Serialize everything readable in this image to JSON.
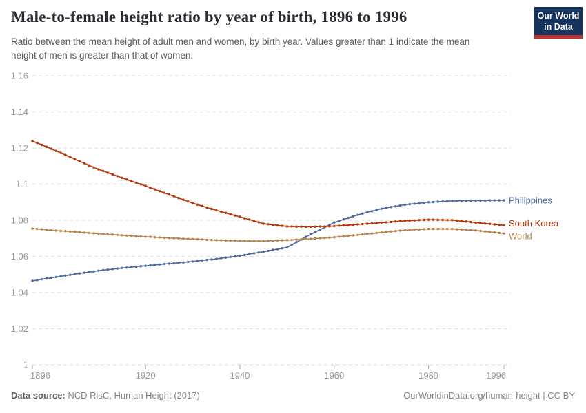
{
  "header": {
    "title": "Male-to-female height ratio by year of birth, 1896 to 1996",
    "subtitle": "Ratio between the mean height of adult men and women, by birth year. Values greater than 1 indicate the mean height of men is greater than that of women.",
    "logo": {
      "line1": "Our World",
      "line2": "in Data",
      "bg_color": "#16335B",
      "stripe_color": "#BE3538"
    }
  },
  "chart_data": {
    "type": "line",
    "title": "Male-to-female height ratio by year of birth, 1896 to 1996",
    "xlabel": "",
    "ylabel": "",
    "ylim": [
      1,
      1.16
    ],
    "yticks": [
      1,
      1.02,
      1.04,
      1.06,
      1.08,
      1.1,
      1.12,
      1.14,
      1.16
    ],
    "ytick_labels": [
      "1",
      "1.02",
      "1.04",
      "1.06",
      "1.08",
      "1.1",
      "1.12",
      "1.14",
      "1.16"
    ],
    "xticks": [
      1896,
      1920,
      1940,
      1960,
      1980,
      1996
    ],
    "grid": "horizontal-dashed",
    "legend": "end-of-line-labels",
    "marker": "yearly-dots",
    "x": [
      1896,
      1897,
      1898,
      1899,
      1900,
      1901,
      1902,
      1903,
      1904,
      1905,
      1906,
      1907,
      1908,
      1909,
      1910,
      1911,
      1912,
      1913,
      1914,
      1915,
      1916,
      1917,
      1918,
      1919,
      1920,
      1921,
      1922,
      1923,
      1924,
      1925,
      1926,
      1927,
      1928,
      1929,
      1930,
      1931,
      1932,
      1933,
      1934,
      1935,
      1936,
      1937,
      1938,
      1939,
      1940,
      1941,
      1942,
      1943,
      1944,
      1945,
      1946,
      1947,
      1948,
      1949,
      1950,
      1951,
      1952,
      1953,
      1954,
      1955,
      1956,
      1957,
      1958,
      1959,
      1960,
      1961,
      1962,
      1963,
      1964,
      1965,
      1966,
      1967,
      1968,
      1969,
      1970,
      1971,
      1972,
      1973,
      1974,
      1975,
      1976,
      1977,
      1978,
      1979,
      1980,
      1981,
      1982,
      1983,
      1984,
      1985,
      1986,
      1987,
      1988,
      1989,
      1990,
      1991,
      1992,
      1993,
      1994,
      1995,
      1996
    ],
    "series": [
      {
        "name": "Philippines",
        "color": "#4C6A9C",
        "values": [
          1.0465,
          1.0469,
          1.0474,
          1.0478,
          1.0482,
          1.0486,
          1.049,
          1.0494,
          1.0498,
          1.0502,
          1.0506,
          1.051,
          1.0513,
          1.0517,
          1.0521,
          1.0524,
          1.0527,
          1.053,
          1.0533,
          1.0536,
          1.0538,
          1.0541,
          1.0543,
          1.0546,
          1.0548,
          1.055,
          1.0553,
          1.0555,
          1.0558,
          1.056,
          1.0562,
          1.0565,
          1.0567,
          1.057,
          1.0572,
          1.0575,
          1.0578,
          1.0581,
          1.0583,
          1.0586,
          1.059,
          1.0593,
          1.0597,
          1.06,
          1.0604,
          1.0608,
          1.0613,
          1.0617,
          1.0622,
          1.0626,
          1.0631,
          1.0636,
          1.064,
          1.0645,
          1.065,
          1.0664,
          1.0679,
          1.0693,
          1.0708,
          1.0722,
          1.0735,
          1.0748,
          1.0762,
          1.0775,
          1.0788,
          1.0796,
          1.0805,
          1.0813,
          1.0822,
          1.083,
          1.0837,
          1.0844,
          1.085,
          1.0857,
          1.0864,
          1.0868,
          1.0873,
          1.0877,
          1.0882,
          1.0886,
          1.0889,
          1.0892,
          1.0894,
          1.0897,
          1.09,
          1.0901,
          1.0903,
          1.0904,
          1.0906,
          1.0907,
          1.0907,
          1.0908,
          1.0908,
          1.0909,
          1.0909,
          1.0909,
          1.0909,
          1.091,
          1.091,
          1.091,
          1.091
        ]
      },
      {
        "name": "South Korea",
        "color": "#B13507",
        "values": [
          1.1238,
          1.1228,
          1.1217,
          1.1207,
          1.1196,
          1.1184,
          1.1173,
          1.1161,
          1.115,
          1.1138,
          1.1127,
          1.1116,
          1.1104,
          1.1093,
          1.1082,
          1.1073,
          1.1063,
          1.1054,
          1.1044,
          1.1035,
          1.1026,
          1.1017,
          1.1008,
          1.0999,
          1.099,
          1.098,
          1.0971,
          1.0961,
          1.0952,
          1.0942,
          1.0933,
          1.0923,
          1.0914,
          1.0904,
          1.0895,
          1.0887,
          1.0879,
          1.0871,
          1.0863,
          1.0855,
          1.0848,
          1.0841,
          1.0833,
          1.0826,
          1.0819,
          1.0811,
          1.0804,
          1.0796,
          1.0789,
          1.0781,
          1.0778,
          1.0775,
          1.0772,
          1.0769,
          1.0766,
          1.0766,
          1.0765,
          1.0765,
          1.0764,
          1.0764,
          1.0765,
          1.0766,
          1.0766,
          1.0767,
          1.0768,
          1.077,
          1.0772,
          1.0773,
          1.0775,
          1.0777,
          1.0779,
          1.0781,
          1.0783,
          1.0785,
          1.0787,
          1.0789,
          1.0791,
          1.0793,
          1.0795,
          1.0797,
          1.0798,
          1.0799,
          1.0801,
          1.0802,
          1.0803,
          1.0803,
          1.0802,
          1.0802,
          1.0801,
          1.0801,
          1.0798,
          1.0795,
          1.0793,
          1.079,
          1.0787,
          1.0785,
          1.0782,
          1.078,
          1.0777,
          1.0775,
          1.0772
        ]
      },
      {
        "name": "World",
        "color": "#B5854D",
        "values": [
          1.0754,
          1.0752,
          1.075,
          1.0747,
          1.0745,
          1.0743,
          1.0741,
          1.074,
          1.0738,
          1.0736,
          1.0734,
          1.0732,
          1.073,
          1.0728,
          1.0726,
          1.0724,
          1.0722,
          1.0721,
          1.0719,
          1.0717,
          1.0715,
          1.0714,
          1.0712,
          1.0711,
          1.0709,
          1.0708,
          1.0706,
          1.0705,
          1.0703,
          1.0702,
          1.0701,
          1.07,
          1.0698,
          1.0697,
          1.0696,
          1.0695,
          1.0694,
          1.0692,
          1.0691,
          1.069,
          1.0689,
          1.0688,
          1.0687,
          1.0687,
          1.0686,
          1.0686,
          1.0685,
          1.0685,
          1.0685,
          1.0685,
          1.0686,
          1.0687,
          1.0688,
          1.0689,
          1.069,
          1.0691,
          1.0693,
          1.0694,
          1.0696,
          1.0697,
          1.0699,
          1.0701,
          1.0702,
          1.0704,
          1.0706,
          1.0709,
          1.0711,
          1.0714,
          1.0716,
          1.0719,
          1.0722,
          1.0725,
          1.0727,
          1.073,
          1.0733,
          1.0735,
          1.0738,
          1.074,
          1.0743,
          1.0745,
          1.0746,
          1.0748,
          1.0749,
          1.0751,
          1.0752,
          1.0752,
          1.0752,
          1.0752,
          1.0752,
          1.0752,
          1.075,
          1.0749,
          1.0747,
          1.0746,
          1.0744,
          1.0741,
          1.0738,
          1.0735,
          1.0733,
          1.073,
          1.0727
        ]
      }
    ]
  },
  "footer": {
    "source_label": "Data source:",
    "source_value": " NCD RisC, Human Height (2017)",
    "right_text": "OurWorldinData.org/human-height | CC BY"
  }
}
